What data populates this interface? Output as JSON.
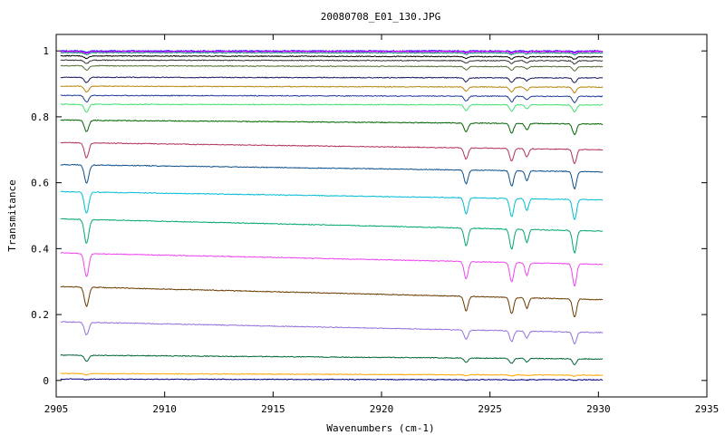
{
  "chart_data": {
    "type": "line",
    "title": "20080708_E01_130.JPG",
    "xlabel": "Wavenumbers (cm-1)",
    "ylabel": "Transmitance",
    "xlim": [
      2905,
      2935
    ],
    "ylim": [
      -0.05,
      1.05
    ],
    "x_range_data": [
      2905.2,
      2930.2
    ],
    "x_ticks": [
      2905,
      2910,
      2915,
      2920,
      2925,
      2930,
      2935
    ],
    "x_tick_labels": [
      "2905",
      "2910",
      "2915",
      "2920",
      "2925",
      "2930",
      "2935"
    ],
    "y_ticks": [
      0,
      0.2,
      0.4,
      0.6,
      0.8,
      1.0
    ],
    "y_tick_labels": [
      "0",
      "0.2",
      "0.4",
      "0.6",
      "0.8",
      "1"
    ],
    "grid": false,
    "legend": "none",
    "absorption_lines_cm1": [
      2906.4,
      2923.9,
      2926.0,
      2926.7,
      2928.9
    ],
    "series": [
      {
        "color": "#0000ff",
        "start": 1.0,
        "end": 1.0,
        "depth": 0.004
      },
      {
        "color": "#ff00ff",
        "start": 0.998,
        "end": 0.998,
        "depth": 0.005
      },
      {
        "color": "#008080",
        "start": 0.995,
        "end": 0.994,
        "depth": 0.006
      },
      {
        "color": "#000000",
        "start": 0.985,
        "end": 0.982,
        "depth": 0.008
      },
      {
        "color": "#333333",
        "start": 0.972,
        "end": 0.97,
        "depth": 0.01
      },
      {
        "color": "#556b2f",
        "start": 0.955,
        "end": 0.952,
        "depth": 0.013
      },
      {
        "color": "#1a1a5e",
        "start": 0.92,
        "end": 0.918,
        "depth": 0.016
      },
      {
        "color": "#b8860b",
        "start": 0.893,
        "end": 0.89,
        "depth": 0.018
      },
      {
        "color": "#1f3b99",
        "start": 0.865,
        "end": 0.862,
        "depth": 0.02
      },
      {
        "color": "#40e070",
        "start": 0.838,
        "end": 0.836,
        "depth": 0.023
      },
      {
        "color": "#006400",
        "start": 0.79,
        "end": 0.778,
        "depth": 0.035
      },
      {
        "color": "#b03060",
        "start": 0.722,
        "end": 0.7,
        "depth": 0.045
      },
      {
        "color": "#0b4f8a",
        "start": 0.655,
        "end": 0.633,
        "depth": 0.055
      },
      {
        "color": "#00bcd4",
        "start": 0.573,
        "end": 0.548,
        "depth": 0.065
      },
      {
        "color": "#00a86b",
        "start": 0.49,
        "end": 0.453,
        "depth": 0.072
      },
      {
        "color": "#ee44ee",
        "start": 0.387,
        "end": 0.352,
        "depth": 0.07
      },
      {
        "color": "#6b3a00",
        "start": 0.285,
        "end": 0.245,
        "depth": 0.058
      },
      {
        "color": "#9370db",
        "start": 0.178,
        "end": 0.145,
        "depth": 0.038
      },
      {
        "color": "#006633",
        "start": 0.077,
        "end": 0.065,
        "depth": 0.018
      },
      {
        "color": "#ffa500",
        "start": 0.021,
        "end": 0.016,
        "depth": 0.004
      },
      {
        "color": "#000080",
        "start": 0.004,
        "end": 0.002,
        "depth": 0.002
      }
    ]
  }
}
